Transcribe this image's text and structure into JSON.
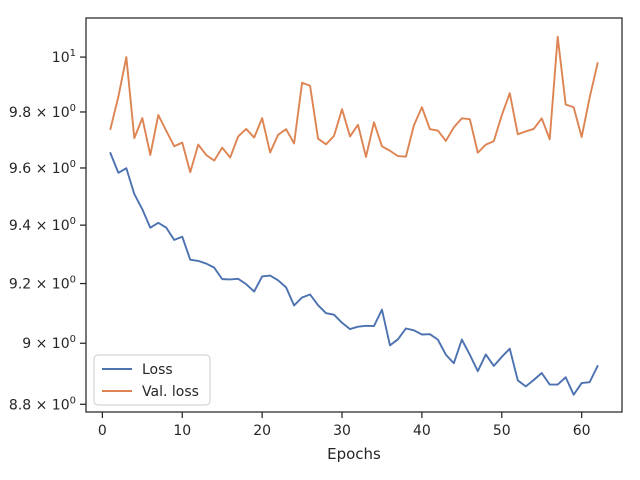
{
  "chart_data": {
    "type": "line",
    "title": "",
    "xlabel": "Epochs",
    "ylabel": "",
    "xlim": [
      -2.05,
      65.05
    ],
    "ylim": [
      8.775,
      10.145
    ],
    "yscale": "log",
    "grid": false,
    "legend_position": "lower-left",
    "x_ticks": [
      0,
      10,
      20,
      30,
      40,
      50,
      60
    ],
    "y_ticks": [
      {
        "value": 8.8,
        "mantissa": "8.8",
        "exponent": "0"
      },
      {
        "value": 9.0,
        "mantissa": "9",
        "exponent": "0"
      },
      {
        "value": 9.2,
        "mantissa": "9.2",
        "exponent": "0"
      },
      {
        "value": 9.4,
        "mantissa": "9.4",
        "exponent": "0"
      },
      {
        "value": 9.6,
        "mantissa": "9.6",
        "exponent": "0"
      },
      {
        "value": 9.8,
        "mantissa": "9.8",
        "exponent": "0"
      },
      {
        "value": 10.0,
        "mantissa": "10",
        "exponent": "1"
      }
    ],
    "x": [
      1,
      2,
      3,
      4,
      5,
      6,
      7,
      8,
      9,
      10,
      11,
      12,
      13,
      14,
      15,
      16,
      17,
      18,
      19,
      20,
      21,
      22,
      23,
      24,
      25,
      26,
      27,
      28,
      29,
      30,
      31,
      32,
      33,
      34,
      35,
      36,
      37,
      38,
      39,
      40,
      41,
      42,
      43,
      44,
      45,
      46,
      47,
      48,
      49,
      50,
      51,
      52,
      53,
      54,
      55,
      56,
      57,
      58,
      59,
      60,
      61,
      62
    ],
    "series": [
      {
        "name": "Loss",
        "color": "#4c72b0",
        "values": [
          9.653,
          9.583,
          9.599,
          9.508,
          9.455,
          9.391,
          9.408,
          9.391,
          9.349,
          9.36,
          9.281,
          9.277,
          9.268,
          9.254,
          9.215,
          9.214,
          9.216,
          9.198,
          9.173,
          9.224,
          9.227,
          9.211,
          9.187,
          9.126,
          9.153,
          9.163,
          9.127,
          9.1,
          9.095,
          9.068,
          9.047,
          9.055,
          9.058,
          9.057,
          9.112,
          8.993,
          9.013,
          9.049,
          9.043,
          9.029,
          9.03,
          9.012,
          8.962,
          8.934,
          9.012,
          8.962,
          8.908,
          8.963,
          8.925,
          8.955,
          8.982,
          8.878,
          8.858,
          8.879,
          8.902,
          8.864,
          8.864,
          8.888,
          8.831,
          8.869,
          8.872,
          8.925
        ]
      },
      {
        "name": "Val. loss",
        "color": "#dd8452",
        "values": [
          9.738,
          9.855,
          10.0,
          9.706,
          9.778,
          9.646,
          9.789,
          9.732,
          9.677,
          9.69,
          9.585,
          9.683,
          9.646,
          9.626,
          9.672,
          9.637,
          9.712,
          9.739,
          9.708,
          9.778,
          9.655,
          9.718,
          9.738,
          9.687,
          9.906,
          9.895,
          9.704,
          9.684,
          9.714,
          9.81,
          9.712,
          9.754,
          9.639,
          9.763,
          9.677,
          9.661,
          9.642,
          9.64,
          9.752,
          9.817,
          9.738,
          9.733,
          9.696,
          9.745,
          9.777,
          9.774,
          9.654,
          9.683,
          9.695,
          9.788,
          9.868,
          9.72,
          9.73,
          9.739,
          9.777,
          9.702,
          10.075,
          9.827,
          9.817,
          9.71,
          9.852,
          9.978
        ]
      }
    ]
  }
}
